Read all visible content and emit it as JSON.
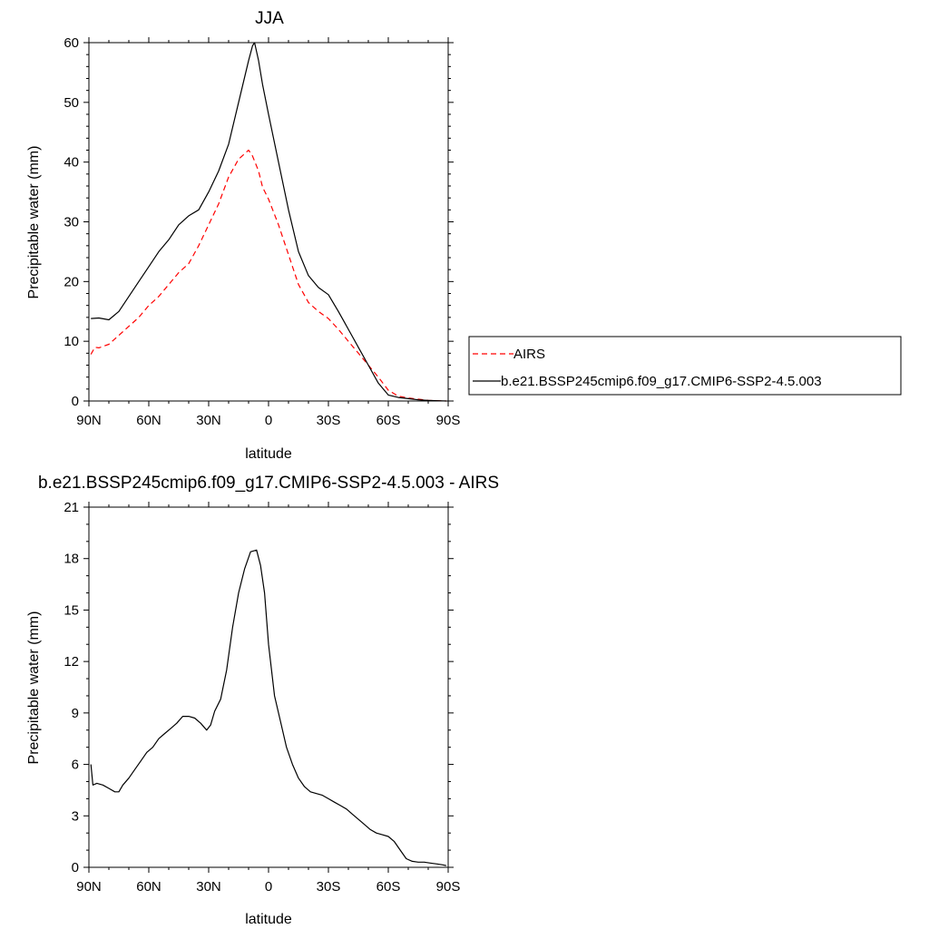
{
  "chart_data": [
    {
      "type": "line",
      "title": "JJA",
      "xlabel": "latitude",
      "ylabel": "Precipitable water (mm)",
      "xlim": [
        90,
        -90
      ],
      "ylim": [
        0,
        60
      ],
      "x_ticks": [
        "90N",
        "60N",
        "30N",
        "0",
        "30S",
        "60S",
        "90S"
      ],
      "y_ticks": [
        "0",
        "10",
        "20",
        "30",
        "40",
        "50",
        "60"
      ],
      "legend_position": "right",
      "series": [
        {
          "name": "AIRS",
          "color": "#ff0000",
          "dash": "dashed",
          "x": [
            89,
            87,
            85,
            80,
            75,
            70,
            65,
            60,
            55,
            50,
            45,
            40,
            35,
            30,
            25,
            20,
            15,
            10,
            8,
            5,
            3,
            0,
            -5,
            -10,
            -15,
            -20,
            -25,
            -30,
            -35,
            -40,
            -45,
            -50,
            -55,
            -60,
            -65,
            -70,
            -75,
            -80,
            -85,
            -89
          ],
          "y": [
            7.8,
            9,
            8.9,
            9.5,
            11,
            12.5,
            14,
            16,
            17.5,
            19.5,
            21.5,
            23,
            26,
            29.5,
            33,
            37.5,
            40.5,
            42,
            41,
            38.5,
            35.8,
            33.8,
            29.5,
            24.5,
            19.5,
            16.5,
            15,
            13.8,
            12,
            10,
            8,
            6,
            4,
            1.8,
            0.8,
            0.5,
            0.3,
            0.1,
            0.05,
            0
          ]
        },
        {
          "name": "b.e21.BSSP245cmip6.f09_g17.CMIP6-SSP2-4.5.003",
          "color": "#000000",
          "dash": "solid",
          "x": [
            89,
            85,
            80,
            75,
            70,
            65,
            60,
            55,
            50,
            45,
            40,
            35,
            30,
            25,
            20,
            15,
            10,
            8,
            7,
            5,
            3,
            0,
            -5,
            -10,
            -15,
            -20,
            -25,
            -30,
            -35,
            -40,
            -45,
            -50,
            -55,
            -60,
            -65,
            -70,
            -75,
            -80,
            -85,
            -89
          ],
          "y": [
            13.8,
            13.9,
            13.6,
            15,
            17.5,
            20,
            22.5,
            25,
            27,
            29.5,
            31,
            32,
            35,
            38.5,
            43,
            50,
            57,
            59.5,
            60,
            57,
            53,
            48,
            40,
            32,
            25,
            21,
            19,
            17.8,
            15,
            12,
            9,
            6,
            3,
            1,
            0.6,
            0.4,
            0.2,
            0.1,
            0.05,
            0
          ]
        }
      ]
    },
    {
      "type": "line",
      "title": "b.e21.BSSP245cmip6.f09_g17.CMIP6-SSP2-4.5.003 - AIRS",
      "xlabel": "latitude",
      "ylabel": "Precipitable water (mm)",
      "xlim": [
        90,
        -90
      ],
      "ylim": [
        0,
        21
      ],
      "x_ticks": [
        "90N",
        "60N",
        "30N",
        "0",
        "30S",
        "60S",
        "90S"
      ],
      "y_ticks": [
        "0",
        "3",
        "6",
        "9",
        "12",
        "15",
        "18",
        "21"
      ],
      "series": [
        {
          "color": "#000000",
          "dash": "solid",
          "x": [
            89,
            88,
            86,
            83,
            80,
            77,
            75,
            73,
            70,
            67,
            64,
            61,
            58,
            55,
            52,
            49,
            46,
            43,
            40,
            37,
            34,
            31,
            29,
            27,
            24,
            21,
            18,
            15,
            12,
            9,
            6,
            4,
            2,
            0,
            -3,
            -6,
            -9,
            -12,
            -15,
            -18,
            -21,
            -24,
            -27,
            -30,
            -33,
            -36,
            -39,
            -42,
            -45,
            -48,
            -51,
            -54,
            -57,
            -60,
            -63,
            -66,
            -69,
            -72,
            -75,
            -78,
            -81,
            -84,
            -87,
            -89
          ],
          "y": [
            6.0,
            4.8,
            4.9,
            4.8,
            4.6,
            4.4,
            4.4,
            4.8,
            5.2,
            5.7,
            6.2,
            6.7,
            7.0,
            7.5,
            7.8,
            8.1,
            8.4,
            8.8,
            8.8,
            8.7,
            8.4,
            8.0,
            8.3,
            9.1,
            9.8,
            11.5,
            14.0,
            16.0,
            17.4,
            18.4,
            18.5,
            17.6,
            16.0,
            13.0,
            10.0,
            8.5,
            7.0,
            6.0,
            5.2,
            4.7,
            4.4,
            4.3,
            4.2,
            4.0,
            3.8,
            3.6,
            3.4,
            3.1,
            2.8,
            2.5,
            2.2,
            2.0,
            1.9,
            1.8,
            1.5,
            1.0,
            0.5,
            0.35,
            0.3,
            0.3,
            0.25,
            0.2,
            0.15,
            0.1
          ]
        }
      ]
    }
  ]
}
